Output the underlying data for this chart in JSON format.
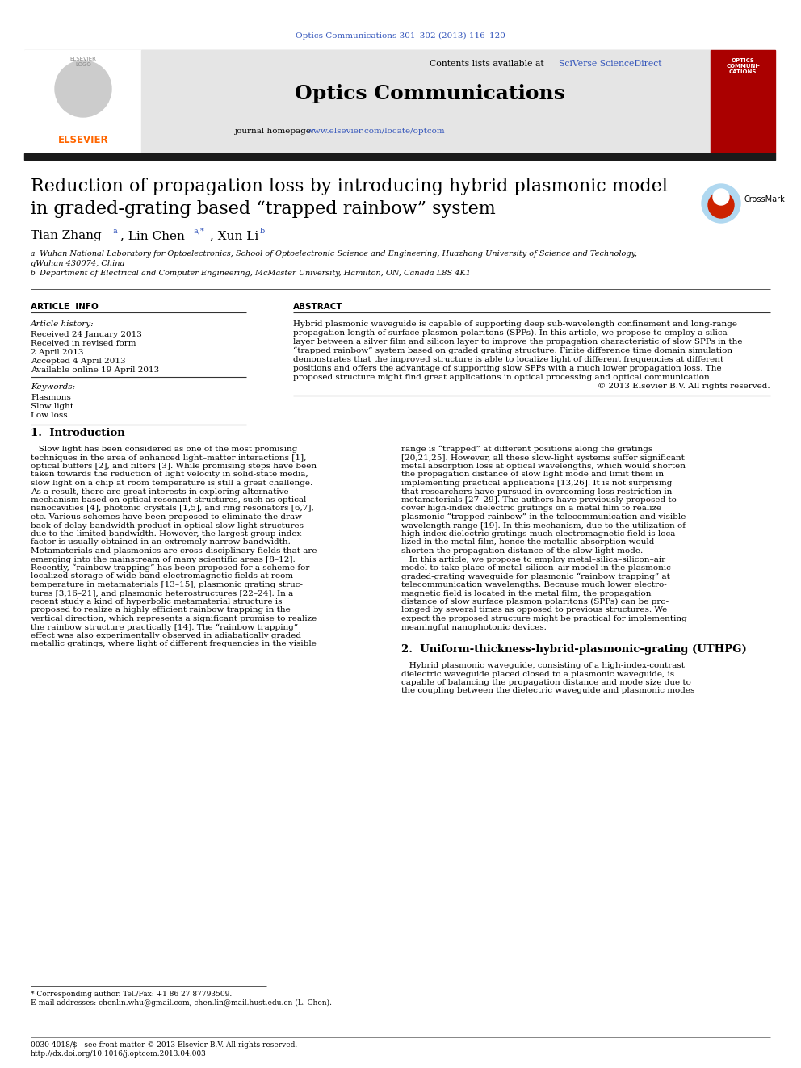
{
  "journal_ref": "Optics Communications 301–302 (2013) 116–120",
  "journal_name": "Optics Communications",
  "contents_pre": "Contents lists available at ",
  "contents_link": "SciVerse ScienceDirect",
  "journal_homepage_pre": "journal homepage: ",
  "journal_homepage_link": "www.elsevier.com/locate/optcom",
  "title_line1": "Reduction of propagation loss by introducing hybrid plasmonic model",
  "title_line2": "in graded-grating based “trapped rainbow” system",
  "author_line": "Tian Zhang",
  "affil_a_super": "a",
  "affil_a_text": " Wuhan National Laboratory for Optoelectronics, School of Optoelectronic Science and Engineering, Huazhong University of Science and Technology,",
  "affil_a_text2": "qWuhan 430074, China",
  "affil_b_super": "b",
  "affil_b_text": " Department of Electrical and Computer Engineering, McMaster University, Hamilton, ON, Canada L8S 4K1",
  "section_article_info": "ARTICLE  INFO",
  "section_abstract": "ABSTRACT",
  "article_history_label": "Article history:",
  "received": "Received 24 January 2013",
  "revised": "Received in revised form",
  "revised2": "2 April 2013",
  "accepted": "Accepted 4 April 2013",
  "online": "Available online 19 April 2013",
  "keywords_label": "Keywords:",
  "kw1": "Plasmons",
  "kw2": "Slow light",
  "kw3": "Low loss",
  "abstract_lines": [
    "Hybrid plasmonic waveguide is capable of supporting deep sub-wavelength confinement and long-range",
    "propagation length of surface plasmon polaritons (SPPs). In this article, we propose to employ a silica",
    "layer between a silver film and silicon layer to improve the propagation characteristic of slow SPPs in the",
    "“trapped rainbow” system based on graded grating structure. Finite difference time domain simulation",
    "demonstrates that the improved structure is able to localize light of different frequencies at different",
    "positions and offers the advantage of supporting slow SPPs with a much lower propagation loss. The",
    "proposed structure might find great applications in optical processing and optical communication.",
    "© 2013 Elsevier B.V. All rights reserved."
  ],
  "section1_title": "1.  Introduction",
  "intro_col1_lines": [
    "   Slow light has been considered as one of the most promising",
    "techniques in the area of enhanced light–matter interactions [1],",
    "optical buffers [2], and filters [3]. While promising steps have been",
    "taken towards the reduction of light velocity in solid-state media,",
    "slow light on a chip at room temperature is still a great challenge.",
    "As a result, there are great interests in exploring alternative",
    "mechanism based on optical resonant structures, such as optical",
    "nanocavities [4], photonic crystals [1,5], and ring resonators [6,7],",
    "etc. Various schemes have been proposed to eliminate the draw-",
    "back of delay-bandwidth product in optical slow light structures",
    "due to the limited bandwidth. However, the largest group index",
    "factor is usually obtained in an extremely narrow bandwidth.",
    "Metamaterials and plasmonics are cross-disciplinary fields that are",
    "emerging into the mainstream of many scientific areas [8–12].",
    "Recently, “rainbow trapping” has been proposed for a scheme for",
    "localized storage of wide-band electromagnetic fields at room",
    "temperature in metamaterials [13–15], plasmonic grating struc-",
    "tures [3,16–21], and plasmonic heterostructures [22–24]. In a",
    "recent study a kind of hyperbolic metamaterial structure is",
    "proposed to realize a highly efficient rainbow trapping in the",
    "vertical direction, which represents a significant promise to realize",
    "the rainbow structure practically [14]. The “rainbow trapping”",
    "effect was also experimentally observed in adiabatically graded",
    "metallic gratings, where light of different frequencies in the visible"
  ],
  "intro_col2_lines": [
    "range is “trapped” at different positions along the gratings",
    "[20,21,25]. However, all these slow-light systems suffer significant",
    "metal absorption loss at optical wavelengths, which would shorten",
    "the propagation distance of slow light mode and limit them in",
    "implementing practical applications [13,26]. It is not surprising",
    "that researchers have pursued in overcoming loss restriction in",
    "metamaterials [27–29]. The authors have previously proposed to",
    "cover high-index dielectric gratings on a metal film to realize",
    "plasmonic “trapped rainbow” in the telecommunication and visible",
    "wavelength range [19]. In this mechanism, due to the utilization of",
    "high-index dielectric gratings much electromagnetic field is loca-",
    "lized in the metal film, hence the metallic absorption would",
    "shorten the propagation distance of the slow light mode.",
    "   In this article, we propose to employ metal–silica–silicon–air",
    "model to take place of metal–silicon–air model in the plasmonic",
    "graded-grating waveguide for plasmonic “rainbow trapping” at",
    "telecommunication wavelengths. Because much lower electro-",
    "magnetic field is located in the metal film, the propagation",
    "distance of slow surface plasmon polaritons (SPPs) can be pro-",
    "longed by several times as opposed to previous structures. We",
    "expect the proposed structure might be practical for implementing",
    "meaningful nanophotonic devices."
  ],
  "section2_title": "2.  Uniform-thickness-hybrid-plasmonic-grating (UTHPG)",
  "section2_col2_lines": [
    "   Hybrid plasmonic waveguide, consisting of a high-index-contrast",
    "dielectric waveguide placed closed to a plasmonic waveguide, is",
    "capable of balancing the propagation distance and mode size due to",
    "the coupling between the dielectric waveguide and plasmonic modes"
  ],
  "footnote_asterisk": "* Corresponding author. Tel./Fax: +1 86 27 87793509.",
  "footnote_email": "E-mail addresses: chenlin.whu@gmail.com, chen.lin@mail.hust.edu.cn (L. Chen).",
  "footer_line1": "0030-4018/$ - see front matter © 2013 Elsevier B.V. All rights reserved.",
  "footer_line2": "http://dx.doi.org/10.1016/j.optcom.2013.04.003",
  "bg_color": "#ffffff",
  "header_bg": "#e5e5e5",
  "thick_bar_color": "#1a1a1a",
  "journal_ref_color": "#3355bb",
  "link_color": "#3355bb",
  "elsevier_orange": "#ff6600",
  "red_cover": "#aa0000"
}
